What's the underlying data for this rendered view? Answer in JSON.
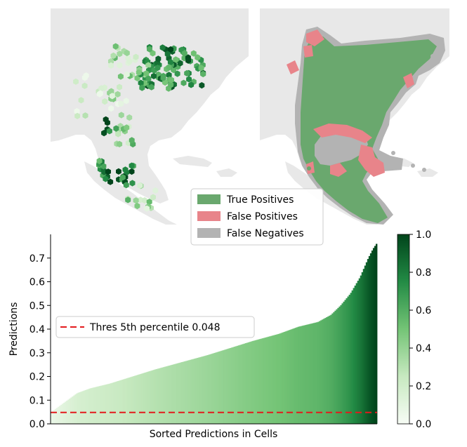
{
  "legend_maps": {
    "items": [
      {
        "label": "True Positives",
        "color": "#6aa86e"
      },
      {
        "label": "False Positives",
        "color": "#e8848a"
      },
      {
        "label": "False Negatives",
        "color": "#b3b3b3"
      }
    ]
  },
  "chart_data": {
    "type": "bar",
    "xlabel": "Sorted Predictions in Cells",
    "ylabel": "Predictions",
    "ylim": [
      0,
      0.8
    ],
    "yticks": [
      "0.0",
      "0.1",
      "0.2",
      "0.3",
      "0.4",
      "0.5",
      "0.6",
      "0.7"
    ],
    "y_tick_values": [
      0,
      0.1,
      0.2,
      0.3,
      0.4,
      0.5,
      0.6,
      0.7
    ],
    "n_bars": 230,
    "sorted": "ascending",
    "values_sampled": [
      [
        0.0,
        0.05
      ],
      [
        0.02,
        0.07
      ],
      [
        0.05,
        0.1
      ],
      [
        0.08,
        0.13
      ],
      [
        0.12,
        0.15
      ],
      [
        0.18,
        0.17
      ],
      [
        0.25,
        0.2
      ],
      [
        0.32,
        0.23
      ],
      [
        0.4,
        0.26
      ],
      [
        0.48,
        0.29
      ],
      [
        0.55,
        0.32
      ],
      [
        0.62,
        0.35
      ],
      [
        0.7,
        0.38
      ],
      [
        0.76,
        0.41
      ],
      [
        0.82,
        0.43
      ],
      [
        0.86,
        0.46
      ],
      [
        0.89,
        0.5
      ],
      [
        0.92,
        0.55
      ],
      [
        0.95,
        0.62
      ],
      [
        0.975,
        0.7
      ],
      [
        0.99,
        0.74
      ],
      [
        1.0,
        0.76
      ]
    ],
    "threshold": {
      "value": 0.048,
      "label": "Thres 5th percentile 0.048",
      "color": "#e31a1c",
      "style": "dashed"
    },
    "colormap": "Greens",
    "colorbar": {
      "min": 0.0,
      "max": 1.0,
      "ticks": [
        "0.0",
        "0.2",
        "0.4",
        "0.6",
        "0.8",
        "1.0"
      ],
      "tick_values": [
        0,
        0.2,
        0.4,
        0.6,
        0.8,
        1.0
      ]
    },
    "legend_placement": "center-left"
  }
}
